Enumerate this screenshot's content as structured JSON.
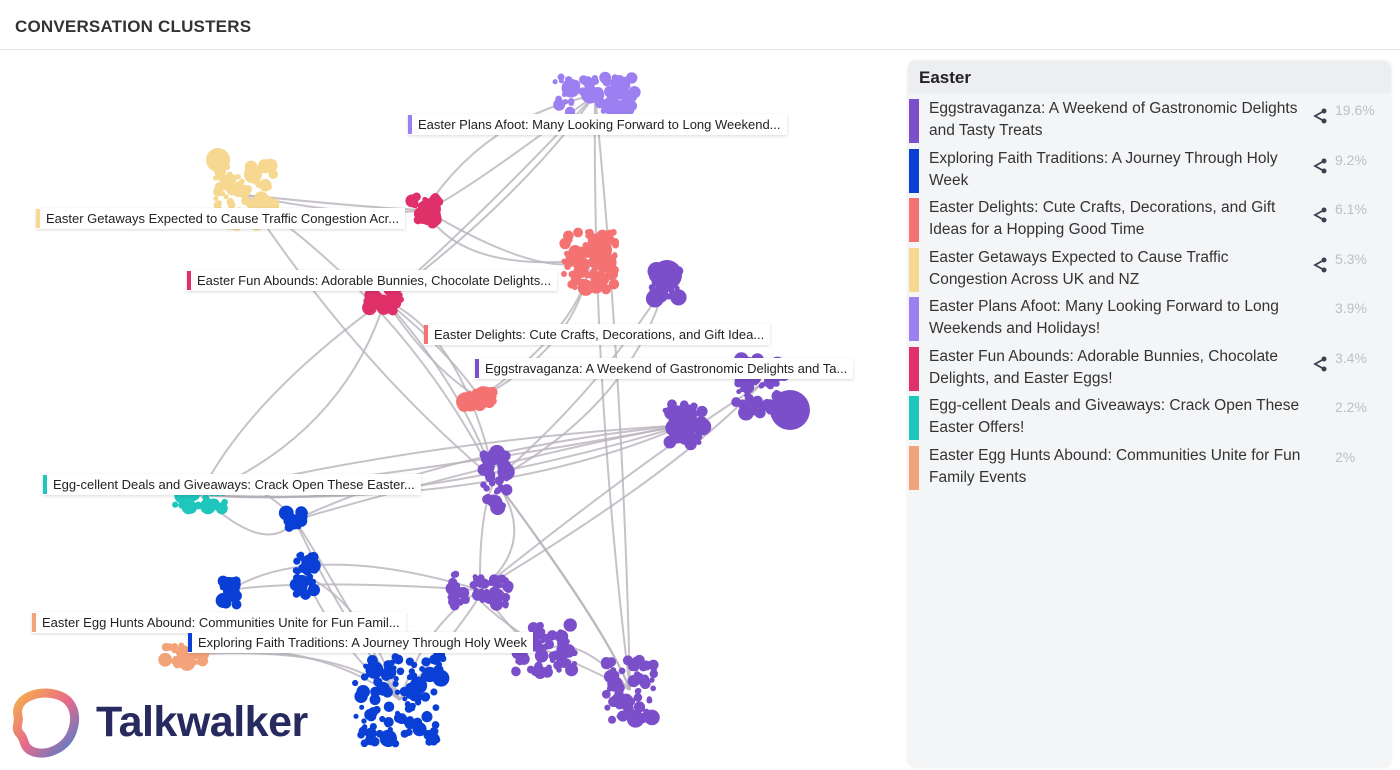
{
  "header": {
    "title": "CONVERSATION CLUSTERS"
  },
  "panel": {
    "title": "Easter",
    "items": [
      {
        "label": "Eggstravaganza: A Weekend of Gastronomic Delights and Tasty Treats",
        "pct": "19.6%",
        "color": "#7b4fc9",
        "share": true
      },
      {
        "label": "Exploring Faith Traditions: A Journey Through Holy Week",
        "pct": "9.2%",
        "color": "#0a3fd6",
        "share": true
      },
      {
        "label": "Easter Delights: Cute Crafts, Decorations, and Gift Ideas for a Hopping Good Time",
        "pct": "6.1%",
        "color": "#f47272",
        "share": true
      },
      {
        "label": "Easter Getaways Expected to Cause Traffic Congestion Across UK and NZ",
        "pct": "5.3%",
        "color": "#f6d891",
        "share": true
      },
      {
        "label": "Easter Plans Afoot: Many Looking Forward to Long Weekends and Holidays!",
        "pct": "3.9%",
        "color": "#9c7ff0",
        "share": false
      },
      {
        "label": "Easter Fun Abounds: Adorable Bunnies, Chocolate Delights, and Easter Eggs!",
        "pct": "3.4%",
        "color": "#e0306a",
        "share": true
      },
      {
        "label": "Egg-cellent Deals and Giveaways: Crack Open These Easter Offers!",
        "pct": "2.2%",
        "color": "#1ec6bb",
        "share": false
      },
      {
        "label": "Easter Egg Hunts Abound: Communities Unite for Fun Family Events",
        "pct": "2%",
        "color": "#f2a37a",
        "share": false
      }
    ]
  },
  "graph_labels": [
    {
      "text": "Easter Plans Afoot: Many Looking Forward to Long Weekend...",
      "color": "#9c7ff0"
    },
    {
      "text": "Easter Getaways Expected to Cause Traffic Congestion Acr...",
      "color": "#f6d891"
    },
    {
      "text": "Easter Fun Abounds: Adorable Bunnies, Chocolate Delights...",
      "color": "#e0306a"
    },
    {
      "text": "Easter Delights: Cute Crafts, Decorations, and Gift Idea...",
      "color": "#f47272"
    },
    {
      "text": "Eggstravaganza: A Weekend of Gastronomic Delights and Ta...",
      "color": "#7b4fc9"
    },
    {
      "text": "Egg-cellent Deals and Giveaways: Crack Open These Easter...",
      "color": "#1ec6bb"
    },
    {
      "text": "Easter Egg Hunts Abound: Communities Unite for Fun Famil...",
      "color": "#f2a37a"
    },
    {
      "text": "Exploring Faith Traditions: A Journey Through Holy Week",
      "color": "#0a3fd6"
    }
  ],
  "logo": {
    "text": "Talkwalker"
  }
}
